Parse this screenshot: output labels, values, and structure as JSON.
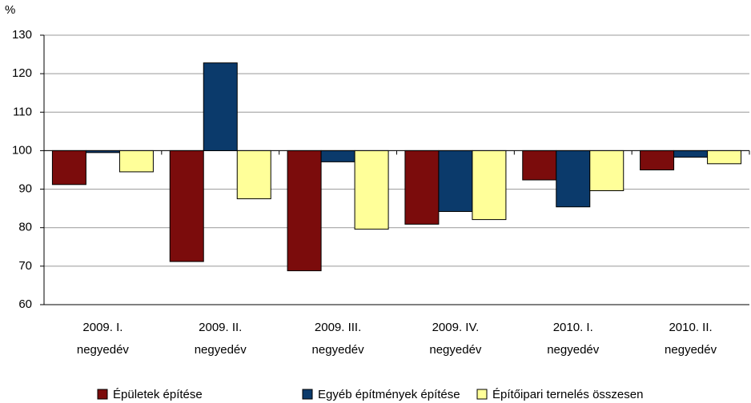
{
  "chart_data": {
    "type": "bar",
    "y_label": "%",
    "categories": [
      [
        "2009. I.",
        "negyedév"
      ],
      [
        "2009. II.",
        "negyedév"
      ],
      [
        "2009. III.",
        "negyedév"
      ],
      [
        "2009. IV.",
        "negyedév"
      ],
      [
        "2010. I.",
        "negyedév"
      ],
      [
        "2010. II.",
        "negyedév"
      ]
    ],
    "baseline": 100,
    "series": [
      {
        "name": "Épületek építése",
        "color": "#7b0c0c",
        "values": [
          91.2,
          71.2,
          68.8,
          80.9,
          92.4,
          95.0
        ]
      },
      {
        "name": "Egyéb építmények építése",
        "color": "#0b3a6b",
        "values": [
          99.5,
          122.8,
          97.1,
          84.2,
          85.4,
          98.3
        ]
      },
      {
        "name": "Építőipari ternelés összesen",
        "color": "#ffff99",
        "values": [
          94.5,
          87.5,
          79.6,
          82.1,
          89.6,
          96.6
        ]
      }
    ],
    "ylim": [
      60,
      130
    ],
    "yticks": [
      60,
      70,
      80,
      90,
      100,
      110,
      120,
      130
    ],
    "grid": true,
    "legend": "bottom"
  }
}
